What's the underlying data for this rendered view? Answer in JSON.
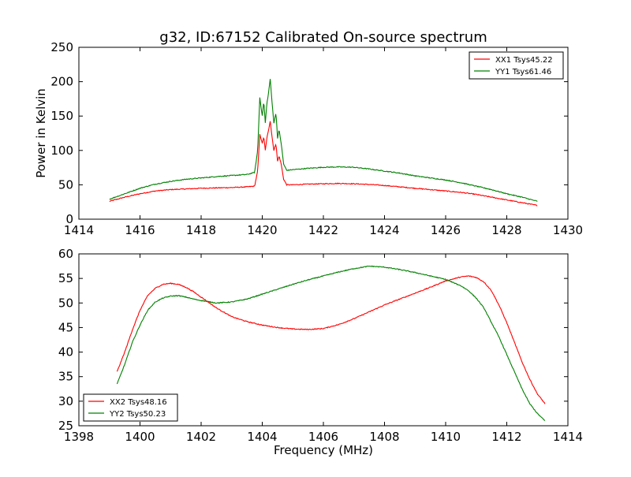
{
  "figure_title": "g32, ID:67152 Calibrated On-source spectrum",
  "colors": {
    "red": "#ff0000",
    "green": "#008000"
  },
  "chart_data": [
    {
      "type": "line",
      "title": "g32, ID:67152 Calibrated On-source spectrum",
      "xlabel": "",
      "ylabel": "Power in Kelvin",
      "xlim": [
        1414,
        1430
      ],
      "ylim": [
        0,
        250
      ],
      "xticks": [
        1414,
        1416,
        1418,
        1420,
        1422,
        1424,
        1426,
        1428,
        1430
      ],
      "yticks": [
        0,
        50,
        100,
        150,
        200,
        250
      ],
      "legend_position": "top-right",
      "grid": false,
      "series": [
        {
          "name": "XX1 Tsys45.22",
          "color": "#ff0000",
          "x": [
            1415.0,
            1415.5,
            1416.0,
            1416.5,
            1417.0,
            1417.5,
            1418.0,
            1418.5,
            1419.0,
            1419.5,
            1419.75,
            1419.85,
            1419.92,
            1420.0,
            1420.05,
            1420.1,
            1420.15,
            1420.2,
            1420.26,
            1420.32,
            1420.38,
            1420.45,
            1420.5,
            1420.55,
            1420.62,
            1420.7,
            1420.8,
            1421.0,
            1421.5,
            1422.0,
            1422.5,
            1423.0,
            1423.5,
            1424.0,
            1424.5,
            1425.0,
            1425.5,
            1426.0,
            1426.5,
            1427.0,
            1427.5,
            1428.0,
            1428.5,
            1429.0
          ],
          "values": [
            26,
            32,
            37,
            41,
            43,
            44,
            45,
            45.5,
            46,
            47,
            48,
            70,
            124,
            110,
            120,
            100,
            118,
            128,
            143,
            120,
            100,
            110,
            84,
            92,
            80,
            58,
            50,
            50,
            51,
            51.5,
            52,
            51.5,
            50.5,
            49,
            47,
            45,
            43,
            41,
            39,
            36,
            32,
            28,
            24,
            20
          ]
        },
        {
          "name": "YY1 Tsys61.46",
          "color": "#008000",
          "x": [
            1415.0,
            1415.5,
            1416.0,
            1416.5,
            1417.0,
            1417.5,
            1418.0,
            1418.5,
            1419.0,
            1419.5,
            1419.75,
            1419.85,
            1419.92,
            1420.0,
            1420.05,
            1420.1,
            1420.15,
            1420.2,
            1420.26,
            1420.32,
            1420.38,
            1420.45,
            1420.5,
            1420.55,
            1420.62,
            1420.7,
            1420.8,
            1421.0,
            1421.5,
            1422.0,
            1422.5,
            1423.0,
            1423.5,
            1424.0,
            1424.5,
            1425.0,
            1425.5,
            1426.0,
            1426.5,
            1427.0,
            1427.5,
            1428.0,
            1428.5,
            1429.0
          ],
          "values": [
            29,
            37,
            45,
            51,
            55,
            58,
            60,
            62,
            63.5,
            65,
            68,
            100,
            177,
            150,
            172,
            140,
            168,
            182,
            204,
            170,
            140,
            155,
            118,
            130,
            110,
            80,
            71,
            72,
            74,
            75.5,
            76,
            75.5,
            73,
            70,
            67,
            63,
            60,
            57,
            53,
            48,
            43,
            37,
            32,
            26
          ]
        }
      ]
    },
    {
      "type": "line",
      "title": "",
      "xlabel": "Frequency (MHz)",
      "ylabel": "",
      "xlim": [
        1398,
        1414
      ],
      "ylim": [
        25,
        60
      ],
      "xticks": [
        1398,
        1400,
        1402,
        1404,
        1406,
        1408,
        1410,
        1412,
        1414
      ],
      "yticks": [
        25,
        30,
        35,
        40,
        45,
        50,
        55,
        60
      ],
      "legend_position": "bottom-left",
      "grid": false,
      "series": [
        {
          "name": "XX2 Tsys48.16",
          "color": "#ff0000",
          "x": [
            1399.25,
            1399.5,
            1399.75,
            1400.0,
            1400.25,
            1400.5,
            1400.75,
            1401.0,
            1401.25,
            1401.5,
            1401.75,
            1402.0,
            1402.5,
            1403.0,
            1403.5,
            1404.0,
            1404.5,
            1405.0,
            1405.5,
            1406.0,
            1406.5,
            1407.0,
            1407.5,
            1408.0,
            1408.5,
            1409.0,
            1409.5,
            1410.0,
            1410.5,
            1410.75,
            1411.0,
            1411.25,
            1411.5,
            1411.75,
            1412.0,
            1412.25,
            1412.5,
            1412.75,
            1413.0,
            1413.25
          ],
          "values": [
            36,
            40,
            44.5,
            48.5,
            51.5,
            53,
            53.8,
            54,
            53.8,
            53.2,
            52.3,
            51.2,
            49,
            47.2,
            46.2,
            45.5,
            45,
            44.7,
            44.6,
            44.8,
            45.6,
            46.8,
            48.2,
            49.6,
            50.8,
            52,
            53.2,
            54.5,
            55.3,
            55.5,
            55.2,
            54.3,
            52.5,
            49.5,
            46,
            42,
            38,
            34.5,
            31.5,
            29.5
          ]
        },
        {
          "name": "YY2 Tsys50.23",
          "color": "#008000",
          "x": [
            1399.25,
            1399.5,
            1399.75,
            1400.0,
            1400.25,
            1400.5,
            1400.75,
            1401.0,
            1401.25,
            1401.5,
            1401.75,
            1402.0,
            1402.5,
            1403.0,
            1403.5,
            1404.0,
            1404.5,
            1405.0,
            1405.5,
            1406.0,
            1406.5,
            1407.0,
            1407.5,
            1408.0,
            1408.5,
            1409.0,
            1409.5,
            1410.0,
            1410.5,
            1410.75,
            1411.0,
            1411.25,
            1411.5,
            1411.75,
            1412.0,
            1412.25,
            1412.5,
            1412.75,
            1413.0,
            1413.25
          ],
          "values": [
            33.5,
            37.5,
            42,
            45.5,
            48.5,
            50.2,
            51,
            51.4,
            51.5,
            51.2,
            50.8,
            50.5,
            50,
            50.2,
            50.8,
            51.8,
            52.8,
            53.8,
            54.7,
            55.5,
            56.3,
            57,
            57.5,
            57.3,
            56.8,
            56.2,
            55.5,
            54.8,
            53.5,
            52.5,
            51,
            49,
            46,
            43,
            39.5,
            36,
            32.5,
            29.5,
            27.5,
            26
          ]
        }
      ]
    }
  ]
}
